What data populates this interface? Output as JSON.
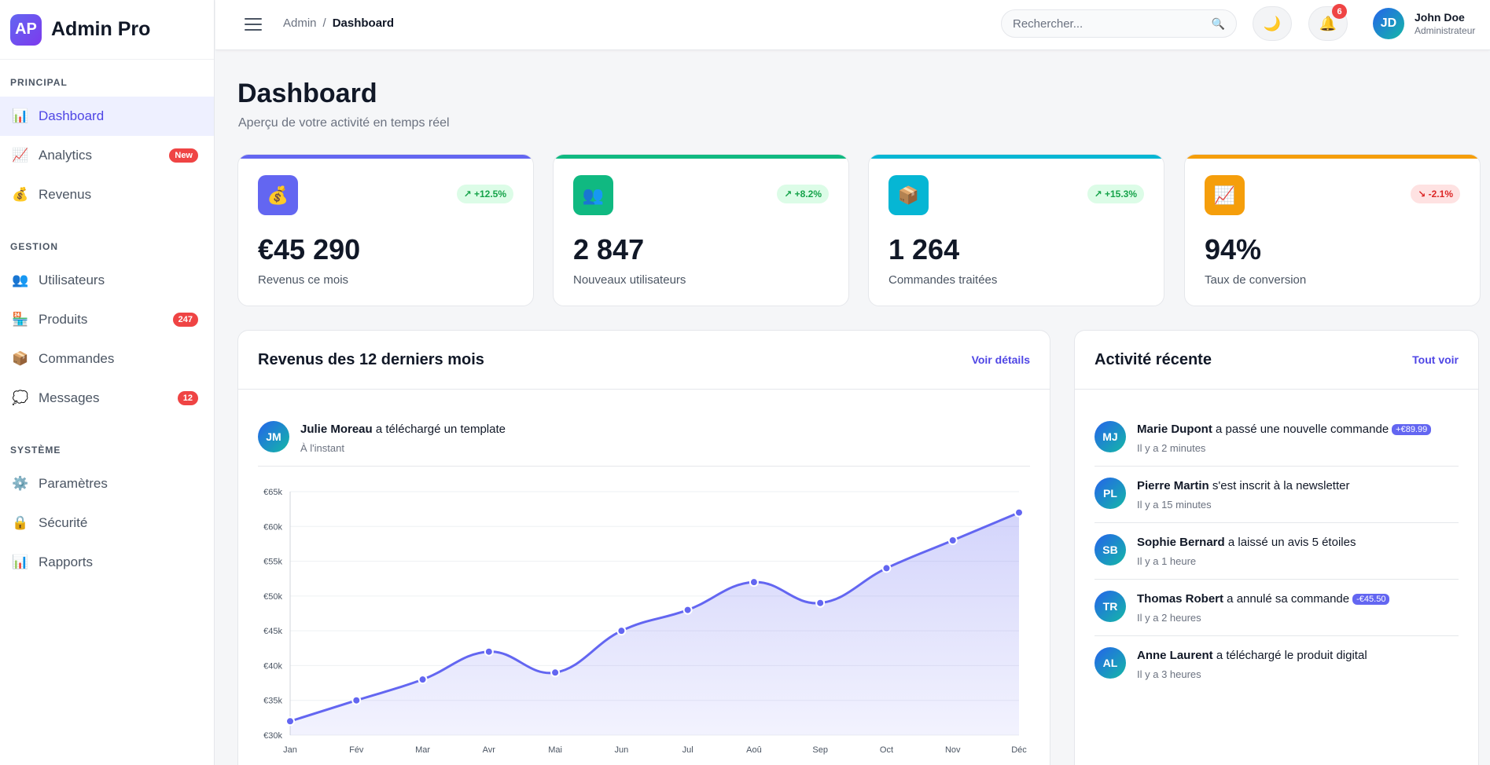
{
  "brand": {
    "logo": "AP",
    "name": "Admin Pro"
  },
  "sidebar": {
    "sections": [
      {
        "title": "PRINCIPAL",
        "items": [
          {
            "label": "Dashboard",
            "icon": "📊",
            "icon_name": "chart-bar-icon",
            "active": true
          },
          {
            "label": "Analytics",
            "icon": "📈",
            "icon_name": "trend-up-icon",
            "badge": "New"
          },
          {
            "label": "Revenus",
            "icon": "💰",
            "icon_name": "money-bag-icon"
          }
        ]
      },
      {
        "title": "GESTION",
        "items": [
          {
            "label": "Utilisateurs",
            "icon": "👥",
            "icon_name": "users-icon"
          },
          {
            "label": "Produits",
            "icon": "🏪",
            "icon_name": "store-icon",
            "badge": "247"
          },
          {
            "label": "Commandes",
            "icon": "📦",
            "icon_name": "package-icon"
          },
          {
            "label": "Messages",
            "icon": "💭",
            "icon_name": "message-icon",
            "badge": "12"
          }
        ]
      },
      {
        "title": "SYSTÈME",
        "items": [
          {
            "label": "Paramètres",
            "icon": "⚙️",
            "icon_name": "gear-icon"
          },
          {
            "label": "Sécurité",
            "icon": "🔒",
            "icon_name": "lock-icon"
          },
          {
            "label": "Rapports",
            "icon": "📊",
            "icon_name": "report-icon"
          }
        ]
      }
    ]
  },
  "header": {
    "breadcrumb": {
      "parent": "Admin",
      "separator": "/",
      "current": "Dashboard"
    },
    "search_placeholder": "Rechercher...",
    "theme_icon": "🌙",
    "bell_icon": "🔔",
    "notifications_count": "6",
    "user": {
      "initials": "JD",
      "name": "John Doe",
      "role": "Administrateur"
    }
  },
  "page": {
    "title": "Dashboard",
    "subtitle": "Aperçu de votre activité en temps réel"
  },
  "stats": [
    {
      "icon": "💰",
      "icon_name": "money-bag-icon",
      "trend": "↗ +12.5%",
      "trend_dir": "up",
      "value": "€45 290",
      "label": "Revenus ce mois",
      "color": "#6366f1",
      "icon_bg": "#6366f1"
    },
    {
      "icon": "👥",
      "icon_name": "users-icon",
      "trend": "↗ +8.2%",
      "trend_dir": "up",
      "value": "2 847",
      "label": "Nouveaux utilisateurs",
      "color": "#10b981",
      "icon_bg": "#10b981"
    },
    {
      "icon": "📦",
      "icon_name": "package-icon",
      "trend": "↗ +15.3%",
      "trend_dir": "up",
      "value": "1 264",
      "label": "Commandes traitées",
      "color": "#06b6d4",
      "icon_bg": "#06b6d4"
    },
    {
      "icon": "📈",
      "icon_name": "trend-up-icon",
      "trend": "↘ -2.1%",
      "trend_dir": "down",
      "value": "94%",
      "label": "Taux de conversion",
      "color": "#f59e0b",
      "icon_bg": "#f59e0b"
    }
  ],
  "revenue_panel": {
    "title": "Revenus des 12 derniers mois",
    "link": "Voir détails",
    "activity": {
      "initials": "JM",
      "name": "Julie Moreau",
      "action": " a téléchargé un template",
      "time": "À l'instant"
    }
  },
  "chart_data": {
    "type": "area",
    "title": "Revenus des 12 derniers mois",
    "categories": [
      "Jan",
      "Fév",
      "Mar",
      "Avr",
      "Mai",
      "Jun",
      "Jul",
      "Aoû",
      "Sep",
      "Oct",
      "Nov",
      "Déc"
    ],
    "values": [
      32,
      35,
      38,
      42,
      39,
      45,
      48,
      52,
      49,
      54,
      58,
      62
    ],
    "ylim": [
      30,
      65
    ],
    "yticks": [
      "€30k",
      "€35k",
      "€40k",
      "€45k",
      "€50k",
      "€55k",
      "€60k",
      "€65k"
    ],
    "color": "#6366f1",
    "grid": true
  },
  "activity_panel": {
    "title": "Activité récente",
    "link": "Tout voir",
    "items": [
      {
        "initials": "MJ",
        "name": "Marie Dupont",
        "action": " a passé une nouvelle commande",
        "tag": "+€89.99",
        "time": "Il y a 2 minutes"
      },
      {
        "initials": "PL",
        "name": "Pierre Martin",
        "action": " s'est inscrit à la newsletter",
        "time": "Il y a 15 minutes"
      },
      {
        "initials": "SB",
        "name": "Sophie Bernard",
        "action": " a laissé un avis 5 étoiles",
        "time": "Il y a 1 heure"
      },
      {
        "initials": "TR",
        "name": "Thomas Robert",
        "action": " a annulé sa commande",
        "tag": "-€45.50",
        "time": "Il y a 2 heures"
      },
      {
        "initials": "AL",
        "name": "Anne Laurent",
        "action": " a téléchargé le produit digital",
        "time": "Il y a 3 heures"
      }
    ]
  }
}
